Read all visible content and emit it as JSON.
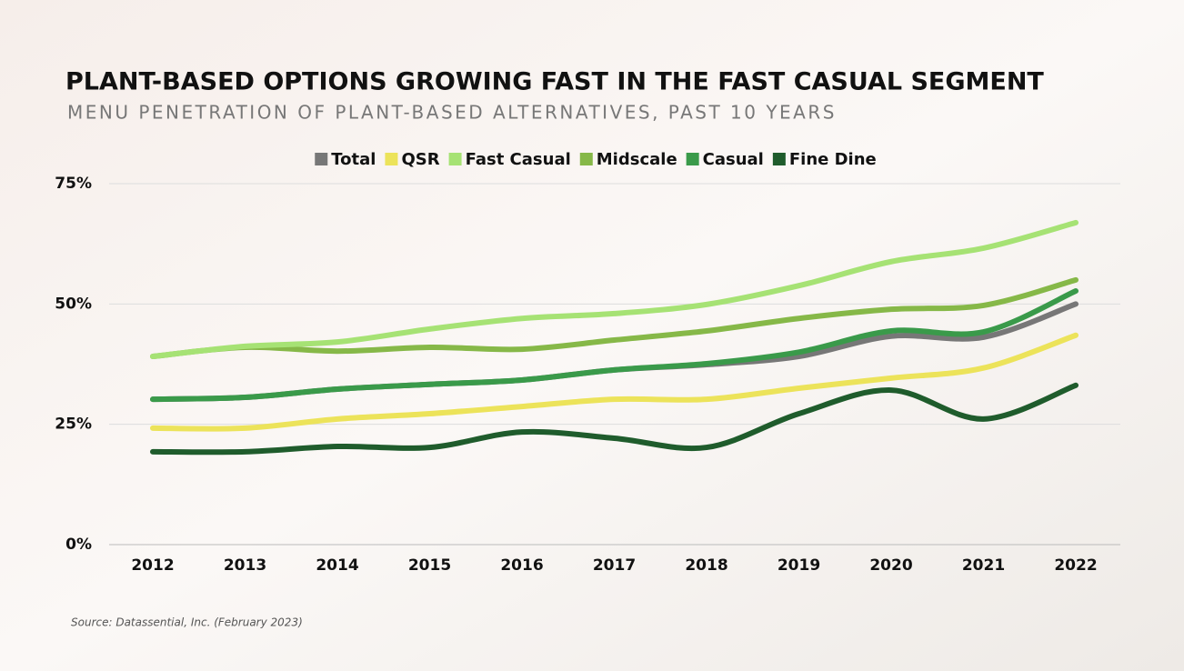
{
  "chart_data": {
    "type": "line",
    "title": "PLANT-BASED OPTIONS GROWING FAST IN THE FAST CASUAL SEGMENT",
    "subtitle": "MENU PENETRATION OF PLANT-BASED ALTERNATIVES, PAST 10 YEARS",
    "source": "Source: Datassential, Inc. (February 2023)",
    "categories": [
      "2012",
      "2013",
      "2014",
      "2015",
      "2016",
      "2017",
      "2018",
      "2019",
      "2020",
      "2021",
      "2022"
    ],
    "series": [
      {
        "name": "Total",
        "color": "#777777",
        "values": [
          30.2,
          30.6,
          32.3,
          33.3,
          34.2,
          36.3,
          37.4,
          39.1,
          43.3,
          43.1,
          50
        ]
      },
      {
        "name": "QSR",
        "color": "#ece35a",
        "values": [
          24.2,
          24.2,
          26.1,
          27.2,
          28.7,
          30.2,
          30.2,
          32.5,
          34.6,
          36.7,
          43.5
        ]
      },
      {
        "name": "Fast Casual",
        "color": "#a6e274",
        "values": [
          39.1,
          41.2,
          42.1,
          44.8,
          47,
          48,
          49.9,
          53.8,
          58.8,
          61.6,
          66.9
        ]
      },
      {
        "name": "Midscale",
        "color": "#86b848",
        "values": [
          39.1,
          41,
          40.2,
          41,
          40.6,
          42.5,
          44.4,
          47,
          48.9,
          49.7,
          55
        ]
      },
      {
        "name": "Casual",
        "color": "#3a9a4a",
        "values": [
          30.2,
          30.6,
          32.3,
          33.3,
          34.2,
          36.3,
          37.6,
          40,
          44.4,
          44.2,
          52.7
        ]
      },
      {
        "name": "Fine Dine",
        "color": "#1f5c2c",
        "values": [
          19.3,
          19.3,
          20.4,
          20.2,
          23.4,
          22.1,
          20.2,
          27.2,
          32.1,
          26.1,
          33.1
        ]
      }
    ],
    "ylim": [
      0,
      75
    ],
    "yticks": [
      {
        "value": 0,
        "label": "0%"
      },
      {
        "value": 25,
        "label": "25%"
      },
      {
        "value": 50,
        "label": "50%"
      },
      {
        "value": 75,
        "label": "75%"
      }
    ],
    "grid": true
  }
}
